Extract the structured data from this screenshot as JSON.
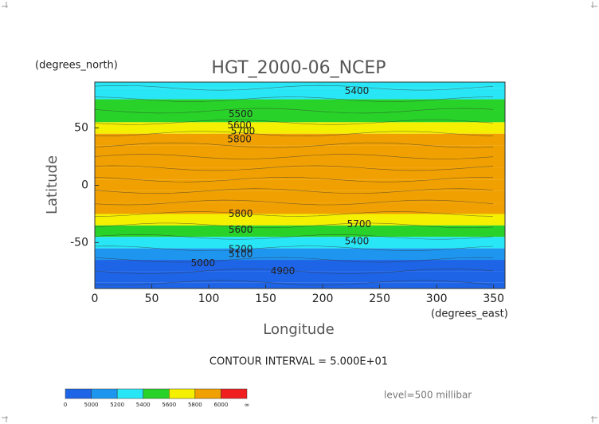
{
  "chart_data": {
    "type": "contour",
    "title": "HGT_2000-06_NCEP",
    "y_unit": "(degrees_north)",
    "y_label": "Latitude",
    "x_label": "Longitude",
    "x_unit": "(degrees_east)",
    "xlim": [
      0,
      360
    ],
    "xticks": [
      0,
      50,
      100,
      150,
      200,
      250,
      300,
      350
    ],
    "ylim": [
      -90,
      90
    ],
    "yticks": [
      -50,
      0,
      50
    ],
    "lat": [
      90,
      80,
      70,
      60,
      50,
      40,
      30,
      20,
      10,
      0,
      -10,
      -20,
      -30,
      -40,
      -50,
      -60,
      -70,
      -80,
      -90
    ],
    "values": [
      5300,
      5350,
      5450,
      5550,
      5700,
      5830,
      5870,
      5880,
      5880,
      5880,
      5880,
      5870,
      5780,
      5550,
      5300,
      5100,
      4980,
      4950,
      4950
    ],
    "contour_labels": [
      {
        "x": 230,
        "y": 82,
        "value": 5400
      },
      {
        "x": 128,
        "y": 62,
        "value": 5500
      },
      {
        "x": 127,
        "y": 52,
        "value": 5600
      },
      {
        "x": 130,
        "y": 47,
        "value": 5700
      },
      {
        "x": 127,
        "y": 40,
        "value": 5800
      },
      {
        "x": 128,
        "y": -25,
        "value": 5800
      },
      {
        "x": 232,
        "y": -34,
        "value": 5700
      },
      {
        "x": 128,
        "y": -39,
        "value": 5600
      },
      {
        "x": 230,
        "y": -49,
        "value": 5400
      },
      {
        "x": 128,
        "y": -56,
        "value": 5200
      },
      {
        "x": 128,
        "y": -60,
        "value": 5100
      },
      {
        "x": 95,
        "y": -68,
        "value": 5000
      },
      {
        "x": 165,
        "y": -75,
        "value": 4900
      }
    ],
    "contour_interval": "CONTOUR INTERVAL = 5.000E+01",
    "level": "level=500 millibar",
    "colorbar": {
      "levels": [
        0,
        5000,
        5200,
        5400,
        5600,
        5800,
        6000
      ],
      "top_label": "∞",
      "colors": [
        "#1e64e6",
        "#1e96f0",
        "#28e6f5",
        "#28d228",
        "#f5f000",
        "#f0a000",
        "#f01e1e"
      ]
    }
  }
}
